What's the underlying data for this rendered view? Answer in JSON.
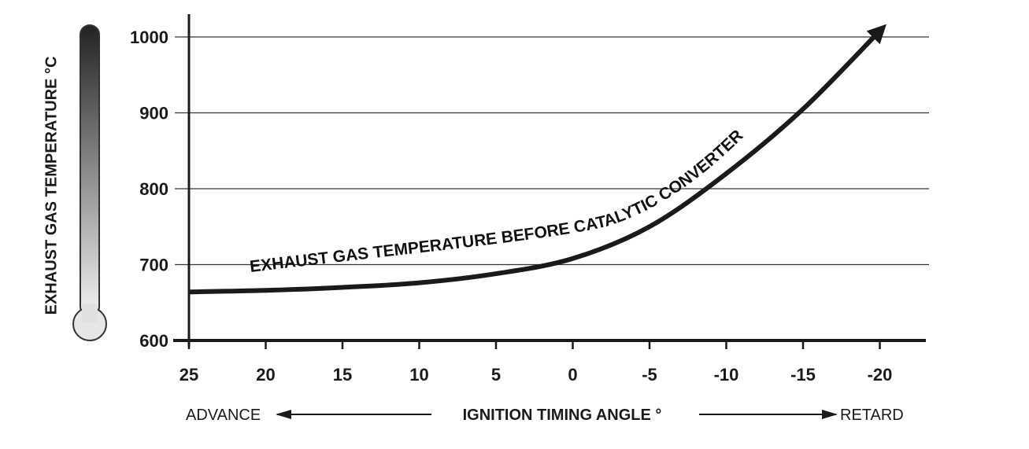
{
  "chart_data": {
    "type": "line",
    "title": "",
    "ylabel": "EXHAUST GAS TEMPERATURE °C",
    "xlabel": "IGNITION TIMING ANGLE °",
    "x_left_label": "ADVANCE",
    "x_right_label": "RETARD",
    "xlim": [
      25,
      -23
    ],
    "ylim": [
      600,
      1000
    ],
    "x_ticks": [
      "25",
      "20",
      "15",
      "10",
      "5",
      "0",
      "-5",
      "-10",
      "-15",
      "-20"
    ],
    "y_ticks": [
      "1000",
      "900",
      "800",
      "700",
      "600"
    ],
    "grid": "horizontal",
    "series": [
      {
        "name": "EXHAUST GAS TEMPERATURE BEFORE CATALYTIC CONVERTER",
        "x": [
          25,
          20,
          15,
          10,
          5,
          0,
          -5,
          -10,
          -15,
          -20
        ],
        "y": [
          664,
          666,
          670,
          676,
          688,
          708,
          750,
          820,
          905,
          1008
        ]
      }
    ],
    "colors": {
      "line": "#1a1a1a",
      "grid": "#333333",
      "axis": "#1a1a1a"
    }
  }
}
